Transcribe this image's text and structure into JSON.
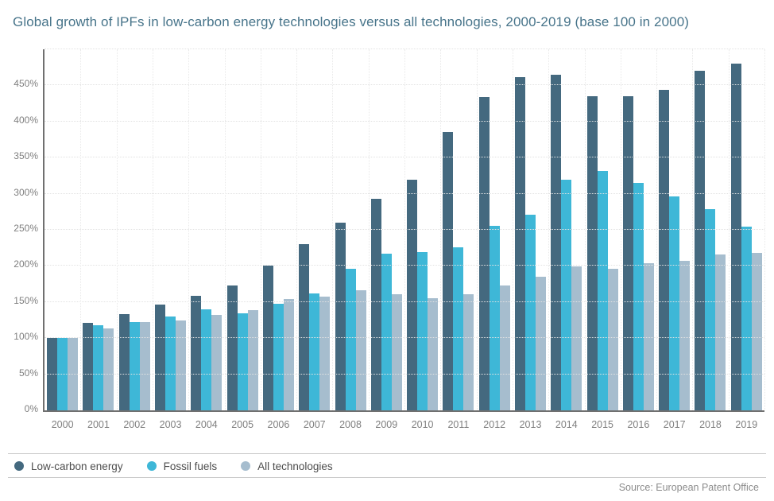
{
  "chart_data": {
    "type": "bar",
    "title": "Global growth of IPFs in low-carbon energy technologies versus all technologies, 2000-2019 (base 100 in 2000)",
    "categories": [
      "2000",
      "2001",
      "2002",
      "2003",
      "2004",
      "2005",
      "2006",
      "2007",
      "2008",
      "2009",
      "2010",
      "2011",
      "2012",
      "2013",
      "2014",
      "2015",
      "2016",
      "2017",
      "2018",
      "2019"
    ],
    "series": [
      {
        "name": "Low-carbon energy",
        "color": "#44697f",
        "values": [
          100,
          121,
          133,
          146,
          159,
          173,
          200,
          230,
          260,
          293,
          319,
          385,
          434,
          462,
          465,
          435,
          435,
          444,
          470,
          480
        ]
      },
      {
        "name": "Fossil fuels",
        "color": "#3eb7d7",
        "values": [
          100,
          118,
          122,
          130,
          140,
          134,
          148,
          162,
          196,
          217,
          219,
          226,
          255,
          271,
          319,
          332,
          315,
          296,
          279,
          254
        ]
      },
      {
        "name": "All technologies",
        "color": "#a6bdce",
        "values": [
          100,
          114,
          122,
          125,
          132,
          139,
          154,
          158,
          166,
          161,
          155,
          161,
          173,
          185,
          199,
          196,
          204,
          207,
          216,
          218
        ]
      }
    ],
    "xlabel": "",
    "ylabel": "",
    "ylim": [
      0,
      500
    ],
    "y_tick_step": 50,
    "y_ticks": [
      "0%",
      "50%",
      "100%",
      "150%",
      "200%",
      "250%",
      "300%",
      "350%",
      "400%",
      "450%"
    ],
    "grid": true,
    "legend_position": "bottom",
    "source": "Source: European Patent Office"
  },
  "colors": {
    "title_text": "#47748a",
    "axis_line": "#707070",
    "grid_line": "#e2e2e2",
    "tick_label": "#7f7f7f",
    "legend_text": "#4d4d4d",
    "divider_line": "#c9c9c9",
    "source_text": "#8c8c8c"
  }
}
